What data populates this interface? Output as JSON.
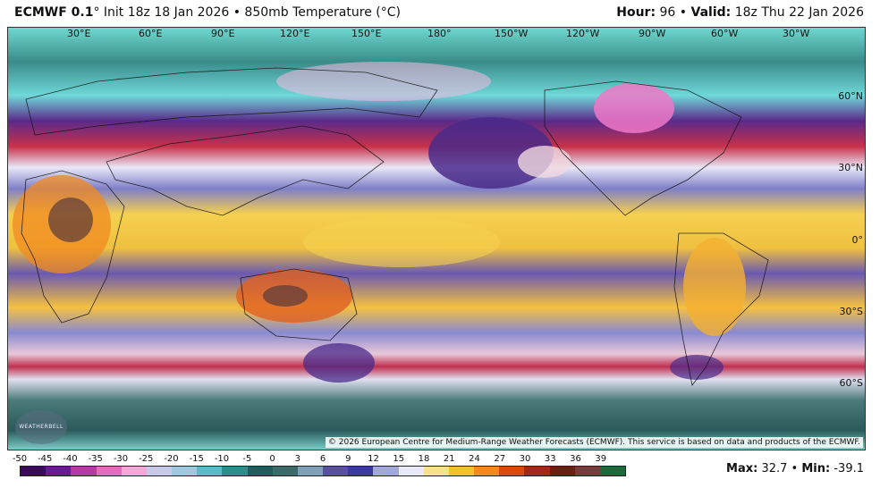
{
  "header": {
    "model": "ECMWF 0.1",
    "init_text": "° Init 18z 18 Jan 2026 • 850mb Temperature (°C)",
    "hour_label": "Hour:",
    "hour_value": "96",
    "valid_label": "Valid:",
    "valid_value": "18z Thu 22 Jan 2026"
  },
  "longitude_labels": [
    "30°E",
    "60°E",
    "90°E",
    "120°E",
    "150°E",
    "180°",
    "150°W",
    "120°W",
    "90°W",
    "60°W",
    "30°W"
  ],
  "latitude_labels": [
    "60°N",
    "30°N",
    "0°",
    "30°S",
    "60°S"
  ],
  "copyright": "© 2026 European Centre for Medium-Range Weather Forecasts (ECMWF). This service is based on data and products of the ECMWF.",
  "logo_text": "WEATHERBELL",
  "colorbar": {
    "labels": [
      "-50",
      "-45",
      "-40",
      "-35",
      "-30",
      "-25",
      "-20",
      "-15",
      "-10",
      "-5",
      "0",
      "3",
      "6",
      "9",
      "12",
      "15",
      "18",
      "21",
      "24",
      "27",
      "30",
      "33",
      "36",
      "39"
    ],
    "colors": [
      "#3b0a5c",
      "#6a1a8a",
      "#b03aa8",
      "#e06cc0",
      "#f5a6d8",
      "#c8c8e8",
      "#9ec8e0",
      "#5fb8c8",
      "#2e8c8c",
      "#1f5e5e",
      "#3a6a6a",
      "#7f9fb8",
      "#5a4fa0",
      "#3a3a9a",
      "#9fa8d8",
      "#e8e8f8",
      "#f8e090",
      "#f5c030",
      "#f08a20",
      "#d84a10",
      "#a02a18",
      "#6a2010",
      "#7a3a3a",
      "#1a6a3a"
    ]
  },
  "stats": {
    "max_label": "Max:",
    "max_value": "32.7",
    "min_label": "Min:",
    "min_value": "-39.1"
  }
}
